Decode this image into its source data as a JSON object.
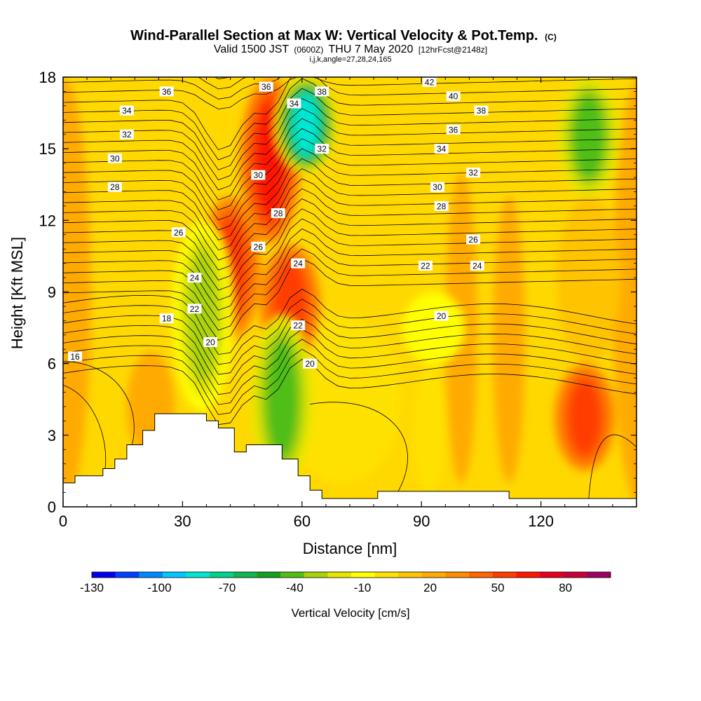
{
  "chart_data": {
    "type": "heatmap",
    "title": "Wind-Parallel Section at Max W: Vertical Velocity & Pot.Temp.",
    "title_unit": "(C)",
    "subtitle_parts": {
      "valid": "Valid 1500 JST",
      "utc": "(0600Z)",
      "date": "THU 7 May 2020",
      "fcst": "[12hrFcst@2148z]"
    },
    "subtitle2": "i,j,k,angle=27,28,24,165",
    "xlabel": "Distance [nm]",
    "ylabel": "Height [Kft MSL]",
    "xlim": [
      0,
      144
    ],
    "ylim": [
      0,
      18
    ],
    "x_ticks": [
      "0",
      "30",
      "60",
      "90",
      "120"
    ],
    "x_tick_values": [
      0,
      30,
      60,
      90,
      120
    ],
    "y_ticks": [
      "0",
      "3",
      "6",
      "9",
      "12",
      "15",
      "18"
    ],
    "y_tick_values": [
      0,
      3,
      6,
      9,
      12,
      15,
      18
    ],
    "colorbar": {
      "label": "Vertical Velocity [cm/s]",
      "range": [
        -130,
        90
      ],
      "step": 10,
      "tick_labels": [
        "-130",
        "-100",
        "-70",
        "-40",
        "-10",
        "20",
        "50",
        "80"
      ],
      "tick_values": [
        -130,
        -100,
        -70,
        -40,
        -10,
        20,
        50,
        80
      ],
      "colors": [
        "#0000f0",
        "#0040ff",
        "#0088ff",
        "#00c8ff",
        "#00e6d2",
        "#00d28c",
        "#10b450",
        "#14a01e",
        "#50be14",
        "#aad20a",
        "#e6e600",
        "#ffff00",
        "#ffe100",
        "#ffc300",
        "#ffaa00",
        "#ff8c00",
        "#ff6400",
        "#ff3c00",
        "#ff1400",
        "#e6001e",
        "#c8003c",
        "#a00064"
      ]
    },
    "velocity_features": [
      {
        "name": "updraft-core-1",
        "x": 42,
        "y_range": [
          7,
          13
        ],
        "peak": 45
      },
      {
        "name": "updraft-core-2",
        "x": 52,
        "y_range": [
          11,
          18
        ],
        "peak": 55
      },
      {
        "name": "updraft-core-3",
        "x": 57,
        "y_range": [
          6,
          11
        ],
        "peak": 40
      },
      {
        "name": "updraft-core-4",
        "x": 131,
        "y_range": [
          1.5,
          6
        ],
        "peak": 45
      },
      {
        "name": "downdraft-core-1",
        "x": 35,
        "y_range": [
          4,
          12
        ],
        "peak": -40
      },
      {
        "name": "downdraft-core-2",
        "x": 55,
        "y_range": [
          1,
          8
        ],
        "peak": -45
      },
      {
        "name": "downdraft-core-3",
        "x": 61,
        "y_range": [
          14,
          18
        ],
        "peak": -90
      },
      {
        "name": "downdraft-core-4",
        "x": 132,
        "y_range": [
          13,
          18
        ],
        "peak": -45
      },
      {
        "name": "downdraft-weak-1",
        "x": 93,
        "y_range": [
          6,
          9
        ],
        "peak": -15
      }
    ],
    "contour_labels": [
      {
        "text": "16",
        "x": 3,
        "y": 6.3
      },
      {
        "text": "18",
        "x": 26,
        "y": 7.9
      },
      {
        "text": "20",
        "x": 37,
        "y": 6.9
      },
      {
        "text": "20",
        "x": 62,
        "y": 6.0
      },
      {
        "text": "20",
        "x": 95,
        "y": 8.0
      },
      {
        "text": "22",
        "x": 33,
        "y": 8.3
      },
      {
        "text": "22",
        "x": 59,
        "y": 7.6
      },
      {
        "text": "22",
        "x": 91,
        "y": 10.1
      },
      {
        "text": "24",
        "x": 33,
        "y": 9.6
      },
      {
        "text": "24",
        "x": 59,
        "y": 10.2
      },
      {
        "text": "24",
        "x": 104,
        "y": 10.1
      },
      {
        "text": "26",
        "x": 29,
        "y": 11.5
      },
      {
        "text": "26",
        "x": 49,
        "y": 10.9
      },
      {
        "text": "26",
        "x": 103,
        "y": 11.2
      },
      {
        "text": "28",
        "x": 13,
        "y": 13.4
      },
      {
        "text": "28",
        "x": 54,
        "y": 12.3
      },
      {
        "text": "28",
        "x": 95,
        "y": 12.6
      },
      {
        "text": "30",
        "x": 13,
        "y": 14.6
      },
      {
        "text": "30",
        "x": 49,
        "y": 13.9
      },
      {
        "text": "30",
        "x": 94,
        "y": 13.4
      },
      {
        "text": "32",
        "x": 16,
        "y": 15.6
      },
      {
        "text": "32",
        "x": 65,
        "y": 15.0
      },
      {
        "text": "32",
        "x": 103,
        "y": 14.0
      },
      {
        "text": "34",
        "x": 16,
        "y": 16.6
      },
      {
        "text": "34",
        "x": 58,
        "y": 16.9
      },
      {
        "text": "34",
        "x": 95,
        "y": 15.0
      },
      {
        "text": "36",
        "x": 26,
        "y": 17.4
      },
      {
        "text": "36",
        "x": 51,
        "y": 17.6
      },
      {
        "text": "36",
        "x": 98,
        "y": 15.8
      },
      {
        "text": "38",
        "x": 65,
        "y": 17.4
      },
      {
        "text": "38",
        "x": 105,
        "y": 16.6
      },
      {
        "text": "40",
        "x": 98,
        "y": 17.2
      },
      {
        "text": "42",
        "x": 92,
        "y": 17.8
      }
    ],
    "terrain": [
      [
        0,
        1
      ],
      [
        3,
        1
      ],
      [
        3,
        1.3
      ],
      [
        10,
        1.3
      ],
      [
        10,
        1.6
      ],
      [
        13,
        1.6
      ],
      [
        13,
        2
      ],
      [
        16,
        2
      ],
      [
        16,
        2.6
      ],
      [
        20,
        2.6
      ],
      [
        20,
        3.2
      ],
      [
        23,
        3.2
      ],
      [
        23,
        3.9
      ],
      [
        36,
        3.9
      ],
      [
        36,
        3.6
      ],
      [
        39,
        3.6
      ],
      [
        39,
        3.3
      ],
      [
        43,
        3.3
      ],
      [
        43,
        2.3
      ],
      [
        46,
        2.3
      ],
      [
        46,
        2.6
      ],
      [
        55,
        2.6
      ],
      [
        55,
        2
      ],
      [
        59,
        2
      ],
      [
        59,
        1.3
      ],
      [
        62,
        1.3
      ],
      [
        62,
        0.7
      ],
      [
        65,
        0.7
      ],
      [
        65,
        0.35
      ],
      [
        79,
        0.35
      ],
      [
        79,
        0.65
      ],
      [
        112,
        0.65
      ],
      [
        112,
        0.35
      ],
      [
        144,
        0.35
      ]
    ]
  }
}
